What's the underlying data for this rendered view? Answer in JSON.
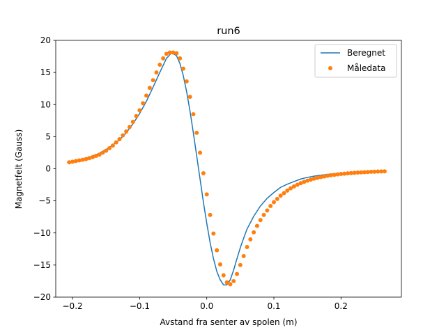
{
  "chart_data": {
    "type": "line",
    "title": "run6",
    "xlabel": "Avstand fra senter av spolen (m)",
    "ylabel": "Magnetfelt (Gauss)",
    "xlim": [
      -0.225,
      0.29
    ],
    "ylim": [
      -20,
      20
    ],
    "xticks": [
      -0.2,
      -0.1,
      0.0,
      0.1,
      0.2
    ],
    "xtick_labels": [
      "−0.2",
      "−0.1",
      "0.0",
      "0.1",
      "0.2"
    ],
    "yticks": [
      -20,
      -15,
      -10,
      -5,
      0,
      5,
      10,
      15,
      20
    ],
    "ytick_labels": [
      "−20",
      "−15",
      "−10",
      "−5",
      "0",
      "5",
      "10",
      "15",
      "20"
    ],
    "grid": false,
    "legend_position": "top-right",
    "series": [
      {
        "name": "Beregnet",
        "kind": "line",
        "color": "#1f77b4",
        "x": [
          -0.205,
          -0.19,
          -0.175,
          -0.16,
          -0.145,
          -0.13,
          -0.12,
          -0.11,
          -0.1,
          -0.09,
          -0.08,
          -0.07,
          -0.06,
          -0.052,
          -0.045,
          -0.04,
          -0.035,
          -0.03,
          -0.025,
          -0.02,
          -0.015,
          -0.01,
          -0.005,
          0.0,
          0.005,
          0.01,
          0.015,
          0.02,
          0.025,
          0.03,
          0.035,
          0.04,
          0.045,
          0.05,
          0.055,
          0.06,
          0.07,
          0.08,
          0.09,
          0.1,
          0.11,
          0.12,
          0.13,
          0.14,
          0.15,
          0.16,
          0.17,
          0.18,
          0.19,
          0.2,
          0.21,
          0.22,
          0.23,
          0.24,
          0.25,
          0.265
        ],
        "y": [
          1.0,
          1.3,
          1.8,
          2.4,
          3.3,
          4.5,
          5.6,
          7.0,
          8.6,
          10.5,
          12.7,
          15.0,
          17.2,
          18.1,
          17.6,
          16.4,
          14.5,
          12.0,
          9.0,
          5.6,
          2.0,
          -1.6,
          -5.2,
          -8.5,
          -11.5,
          -14.0,
          -16.0,
          -17.3,
          -18.1,
          -18.1,
          -17.3,
          -15.8,
          -14.0,
          -12.3,
          -10.8,
          -9.4,
          -7.4,
          -5.8,
          -4.6,
          -3.7,
          -2.9,
          -2.4,
          -2.0,
          -1.6,
          -1.35,
          -1.15,
          -1.0,
          -0.88,
          -0.78,
          -0.7,
          -0.62,
          -0.56,
          -0.5,
          -0.45,
          -0.41,
          -0.36
        ]
      },
      {
        "name": "Måledata",
        "kind": "scatter",
        "color": "#ff7f0e",
        "x": [
          -0.205,
          -0.2,
          -0.195,
          -0.19,
          -0.185,
          -0.18,
          -0.175,
          -0.17,
          -0.165,
          -0.16,
          -0.155,
          -0.15,
          -0.145,
          -0.14,
          -0.135,
          -0.13,
          -0.125,
          -0.12,
          -0.115,
          -0.11,
          -0.105,
          -0.1,
          -0.095,
          -0.09,
          -0.085,
          -0.08,
          -0.075,
          -0.07,
          -0.065,
          -0.06,
          -0.055,
          -0.05,
          -0.045,
          -0.04,
          -0.035,
          -0.03,
          -0.025,
          -0.02,
          -0.015,
          -0.01,
          -0.005,
          0.0,
          0.005,
          0.01,
          0.015,
          0.02,
          0.025,
          0.03,
          0.035,
          0.04,
          0.045,
          0.05,
          0.055,
          0.06,
          0.065,
          0.07,
          0.075,
          0.08,
          0.085,
          0.09,
          0.095,
          0.1,
          0.105,
          0.11,
          0.115,
          0.12,
          0.125,
          0.13,
          0.135,
          0.14,
          0.145,
          0.15,
          0.155,
          0.16,
          0.165,
          0.17,
          0.175,
          0.18,
          0.185,
          0.19,
          0.195,
          0.2,
          0.205,
          0.21,
          0.215,
          0.22,
          0.225,
          0.23,
          0.235,
          0.24,
          0.245,
          0.25,
          0.255,
          0.26,
          0.265
        ],
        "y": [
          1.0,
          1.1,
          1.2,
          1.3,
          1.4,
          1.5,
          1.65,
          1.8,
          2.0,
          2.2,
          2.5,
          2.8,
          3.2,
          3.6,
          4.1,
          4.6,
          5.2,
          5.8,
          6.5,
          7.3,
          8.2,
          9.1,
          10.2,
          11.4,
          12.6,
          13.8,
          15.0,
          16.2,
          17.2,
          17.9,
          18.1,
          18.1,
          18.0,
          17.2,
          15.6,
          13.6,
          11.2,
          8.5,
          5.6,
          2.5,
          -0.7,
          -4.0,
          -7.2,
          -10.1,
          -12.7,
          -14.9,
          -16.6,
          -17.7,
          -18.0,
          -17.5,
          -16.4,
          -15.0,
          -13.6,
          -12.2,
          -11.0,
          -9.9,
          -8.9,
          -8.0,
          -7.2,
          -6.5,
          -5.8,
          -5.2,
          -4.7,
          -4.2,
          -3.8,
          -3.4,
          -3.05,
          -2.75,
          -2.5,
          -2.25,
          -2.05,
          -1.85,
          -1.7,
          -1.55,
          -1.42,
          -1.3,
          -1.2,
          -1.1,
          -1.02,
          -0.95,
          -0.88,
          -0.82,
          -0.77,
          -0.72,
          -0.68,
          -0.64,
          -0.6,
          -0.57,
          -0.54,
          -0.51,
          -0.48,
          -0.46,
          -0.44,
          -0.42,
          -0.4
        ]
      }
    ]
  }
}
